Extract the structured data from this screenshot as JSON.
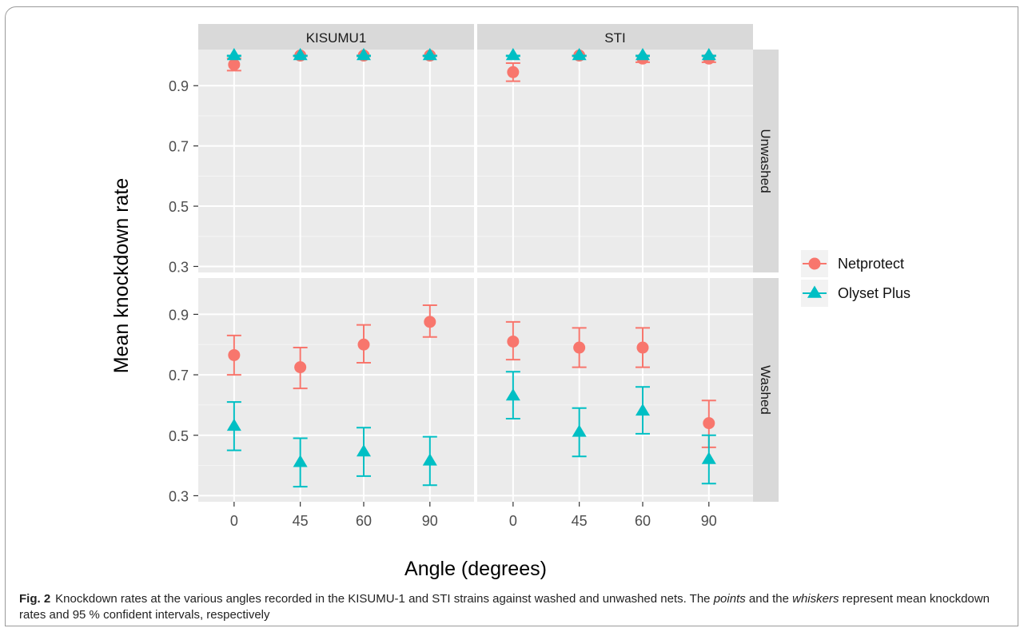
{
  "chart_data": {
    "type": "scatter",
    "title": "",
    "xlabel": "Angle (degrees)",
    "ylabel": "Mean knockdown rate",
    "x_categories": [
      "0",
      "45",
      "60",
      "90"
    ],
    "ylim": [
      0.28,
      1.02
    ],
    "y_ticks": [
      0.3,
      0.5,
      0.7,
      0.9
    ],
    "y_tick_labels": [
      "0.3",
      "0.5",
      "0.7",
      "0.9"
    ],
    "grid": true,
    "legend_position": "right",
    "column_facets": [
      "KISUMU1",
      "STI"
    ],
    "row_facets": [
      "Unwashed",
      "Washed"
    ],
    "series": [
      {
        "name": "Netprotect",
        "color": "#F8766D",
        "shape": "circle",
        "panels": {
          "KISUMU1|Unwashed": {
            "mean": [
              0.97,
              1.0,
              1.0,
              1.0
            ],
            "lower": [
              0.95,
              0.998,
              0.998,
              0.998
            ],
            "upper": [
              0.99,
              1.0,
              1.0,
              1.0
            ]
          },
          "STI|Unwashed": {
            "mean": [
              0.945,
              1.0,
              0.99,
              0.99
            ],
            "lower": [
              0.915,
              0.998,
              0.978,
              0.978
            ],
            "upper": [
              0.975,
              1.0,
              1.0,
              1.0
            ]
          },
          "KISUMU1|Washed": {
            "mean": [
              0.765,
              0.725,
              0.8,
              0.875
            ],
            "lower": [
              0.7,
              0.655,
              0.74,
              0.825
            ],
            "upper": [
              0.83,
              0.79,
              0.865,
              0.93
            ]
          },
          "STI|Washed": {
            "mean": [
              0.81,
              0.79,
              0.79,
              0.54
            ],
            "lower": [
              0.75,
              0.725,
              0.725,
              0.46
            ],
            "upper": [
              0.875,
              0.855,
              0.855,
              0.615
            ]
          }
        }
      },
      {
        "name": "Olyset Plus",
        "color": "#00BFC4",
        "shape": "triangle",
        "panels": {
          "KISUMU1|Unwashed": {
            "mean": [
              1.0,
              1.0,
              1.0,
              1.0
            ],
            "lower": [
              0.998,
              0.998,
              0.998,
              0.998
            ],
            "upper": [
              1.0,
              1.0,
              1.0,
              1.0
            ]
          },
          "STI|Unwashed": {
            "mean": [
              1.0,
              1.0,
              1.0,
              1.0
            ],
            "lower": [
              0.998,
              0.998,
              0.998,
              0.998
            ],
            "upper": [
              1.0,
              1.0,
              1.0,
              1.0
            ]
          },
          "KISUMU1|Washed": {
            "mean": [
              0.53,
              0.41,
              0.445,
              0.415
            ],
            "lower": [
              0.45,
              0.33,
              0.365,
              0.335
            ],
            "upper": [
              0.61,
              0.49,
              0.525,
              0.495
            ]
          },
          "STI|Washed": {
            "mean": [
              0.63,
              0.51,
              0.58,
              0.42
            ],
            "lower": [
              0.555,
              0.43,
              0.505,
              0.34
            ],
            "upper": [
              0.71,
              0.59,
              0.66,
              0.5
            ]
          }
        }
      }
    ],
    "colors": {
      "panel_background": "#EBEBEB",
      "strip_background": "#D9D9D9",
      "grid_major": "#FFFFFF",
      "grid_minor": "#F5F5F5",
      "text": "#4D4D4D"
    }
  },
  "caption": {
    "label": "Fig. 2",
    "text_before_points": "Knockdown rates at the various angles recorded in the KISUMU-1 and STI strains against washed and unwashed nets. The ",
    "points_word": "points",
    "text_between": " and the ",
    "whiskers_word": "whiskers",
    "text_after": " represent mean knockdown rates and 95 % confident intervals, respectively"
  }
}
